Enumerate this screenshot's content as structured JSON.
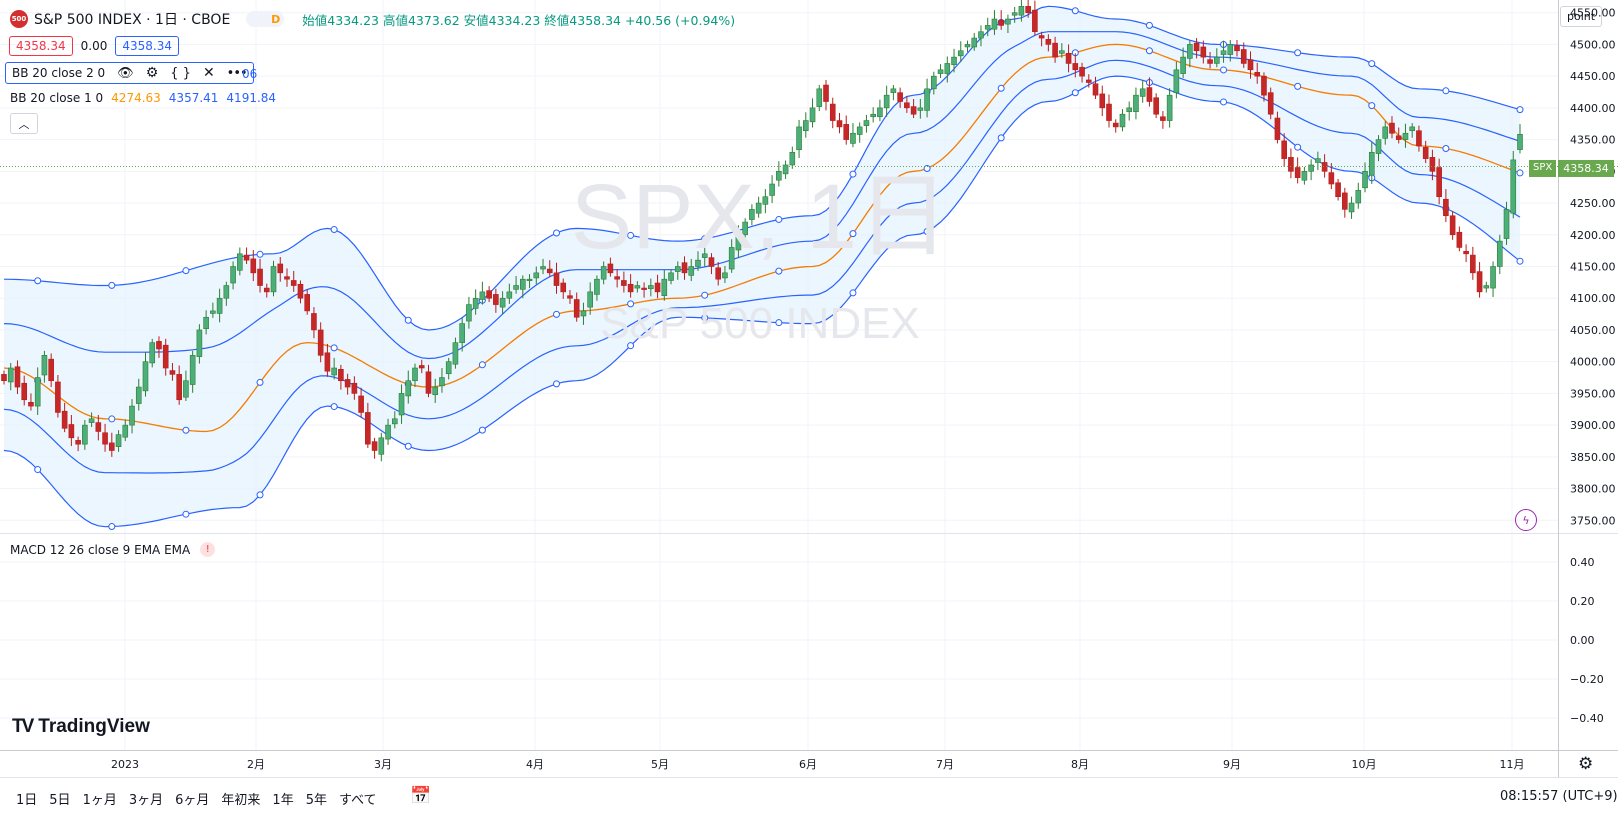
{
  "header": {
    "symbol_badge": "500",
    "title": "S&P 500 INDEX · 1日 · CBOE",
    "d_badge": "D",
    "ohlc": "始値4334.23 高値4373.62 安値4334.23 終値4358.34 +40.56 (+0.94%)",
    "bid": "4358.34",
    "spread": "0.00",
    "ask": "4358.34"
  },
  "indicators": {
    "bb2_label": "BB 20 close 2 0",
    "bb2_tail": "06",
    "bb1_label": "BB 20 close 1 0",
    "bb1_values": [
      "4274.63",
      "4357.41",
      "4191.84"
    ],
    "macd_label": "MACD 12 26 close 9 EMA EMA",
    "macd_warning": "!"
  },
  "watermark": {
    "line1": "SPX, 1日",
    "line2": "S&P 500 INDEX"
  },
  "price_axis": {
    "unit_button": "point",
    "current_symbol": "SPX",
    "current_price": "4358.34",
    "ticks": [
      "4550.00",
      "4500.00",
      "4450.00",
      "4400.00",
      "4350.00",
      "4300.00",
      "4250.00",
      "4200.00",
      "4150.00",
      "4100.00",
      "4050.00",
      "4000.00",
      "3950.00",
      "3900.00",
      "3850.00",
      "3800.00",
      "3750.00"
    ]
  },
  "macd_axis": {
    "ticks": [
      "0.40",
      "0.20",
      "0.00",
      "−0.20",
      "−0.40"
    ]
  },
  "time_axis": {
    "labels": [
      "2023",
      "2月",
      "3月",
      "4月",
      "5月",
      "6月",
      "7月",
      "8月",
      "9月",
      "10月",
      "11月"
    ]
  },
  "bottom_bar": {
    "ranges": [
      "1日",
      "5日",
      "1ヶ月",
      "3ヶ月",
      "6ヶ月",
      "年初来",
      "1年",
      "5年",
      "すべて"
    ],
    "clock": "08:15:57 (UTC+9)"
  },
  "branding": {
    "logo_text": "TradingView"
  },
  "colors": {
    "up": "#26a69a",
    "up_fill": "#4caf7a",
    "down": "#ef5350",
    "down_fill": "#c62828",
    "band_line": "#2962ff",
    "basis": "#f57c00",
    "band_fill": "#e3f2fd",
    "price_label_bg": "#6aa84f"
  },
  "chart_data": {
    "type": "candlestick",
    "symbol": "SPX",
    "interval": "1日",
    "ylim": [
      3730,
      4570
    ],
    "yticks": [
      3750,
      3800,
      3850,
      3900,
      3950,
      4000,
      4050,
      4100,
      4150,
      4200,
      4250,
      4300,
      4350,
      4400,
      4450,
      4500,
      4550
    ],
    "last": {
      "open": 4334.23,
      "high": 4373.62,
      "low": 4334.23,
      "close": 4358.34
    },
    "close_series": [
      3970,
      3990,
      3960,
      3940,
      3930,
      3975,
      4010,
      3970,
      3920,
      3895,
      3880,
      3870,
      3900,
      3910,
      3890,
      3870,
      3860,
      3885,
      3900,
      3930,
      3960,
      4000,
      4030,
      4020,
      3990,
      3980,
      3940,
      3970,
      4010,
      4050,
      4070,
      4080,
      4100,
      4120,
      4150,
      4170,
      4160,
      4140,
      4120,
      4110,
      4150,
      4140,
      4130,
      4120,
      4100,
      4080,
      4050,
      4010,
      3985,
      3990,
      3970,
      3960,
      3950,
      3920,
      3870,
      3860,
      3880,
      3900,
      3910,
      3950,
      3970,
      3990,
      3990,
      3950,
      3960,
      3975,
      4000,
      4030,
      4060,
      4090,
      4100,
      4110,
      4100,
      4090,
      4100,
      4110,
      4120,
      4130,
      4130,
      4140,
      4150,
      4140,
      4120,
      4110,
      4100,
      4070,
      4080,
      4110,
      4130,
      4150,
      4140,
      4130,
      4120,
      4110,
      4120,
      4115,
      4120,
      4110,
      4130,
      4140,
      4150,
      4140,
      4150,
      4160,
      4170,
      4150,
      4130,
      4140,
      4180,
      4200,
      4220,
      4240,
      4250,
      4260,
      4280,
      4300,
      4310,
      4330,
      4370,
      4380,
      4400,
      4430,
      4410,
      4380,
      4370,
      4350,
      4360,
      4370,
      4380,
      4390,
      4400,
      4420,
      4430,
      4410,
      4400,
      4390,
      4400,
      4430,
      4450,
      4460,
      4470,
      4480,
      4490,
      4500,
      4510,
      4520,
      4530,
      4540,
      4530,
      4540,
      4550,
      4560,
      4550,
      4520,
      4510,
      4500,
      4480,
      4490,
      4470,
      4460,
      4450,
      4440,
      4420,
      4400,
      4380,
      4370,
      4390,
      4400,
      4420,
      4430,
      4410,
      4390,
      4380,
      4420,
      4460,
      4480,
      4500,
      4490,
      4480,
      4470,
      4480,
      4490,
      4500,
      4490,
      4470,
      4460,
      4450,
      4420,
      4390,
      4350,
      4320,
      4300,
      4290,
      4300,
      4310,
      4320,
      4300,
      4280,
      4260,
      4240,
      4250,
      4270,
      4300,
      4330,
      4350,
      4370,
      4360,
      4350,
      4360,
      4370,
      4340,
      4320,
      4300,
      4260,
      4230,
      4200,
      4180,
      4170,
      4140,
      4110,
      4120,
      4150,
      4190,
      4240,
      4318,
      4358
    ],
    "bb2": {
      "upper_anchor": [
        [
          0,
          4130
        ],
        [
          15,
          4120
        ],
        [
          40,
          4170
        ],
        [
          48,
          4210
        ],
        [
          63,
          4050
        ],
        [
          85,
          4210
        ],
        [
          100,
          4190
        ],
        [
          120,
          4230
        ],
        [
          135,
          4420
        ],
        [
          150,
          4540
        ],
        [
          155,
          4560
        ],
        [
          165,
          4540
        ],
        [
          180,
          4500
        ],
        [
          200,
          4480
        ],
        [
          210,
          4430
        ],
        [
          235,
          4380
        ],
        [
          245,
          4440
        ]
      ],
      "basis_anchor": [
        [
          0,
          3990
        ],
        [
          15,
          3910
        ],
        [
          30,
          3890
        ],
        [
          45,
          4030
        ],
        [
          63,
          3960
        ],
        [
          85,
          4080
        ],
        [
          100,
          4100
        ],
        [
          120,
          4150
        ],
        [
          135,
          4300
        ],
        [
          155,
          4480
        ],
        [
          165,
          4500
        ],
        [
          180,
          4460
        ],
        [
          200,
          4420
        ],
        [
          210,
          4340
        ],
        [
          235,
          4275
        ],
        [
          245,
          4275
        ]
      ],
      "lower_anchor": [
        [
          0,
          3860
        ],
        [
          15,
          3740
        ],
        [
          35,
          3770
        ],
        [
          48,
          3930
        ],
        [
          63,
          3860
        ],
        [
          85,
          3970
        ],
        [
          100,
          4070
        ],
        [
          120,
          4060
        ],
        [
          135,
          4200
        ],
        [
          155,
          4410
        ],
        [
          165,
          4450
        ],
        [
          180,
          4410
        ],
        [
          200,
          4300
        ],
        [
          210,
          4250
        ],
        [
          235,
          4110
        ],
        [
          245,
          4110
        ]
      ]
    },
    "bb1": {
      "upper_last": 4357.41,
      "basis_last": 4274.63,
      "lower_last": 4191.84
    }
  }
}
